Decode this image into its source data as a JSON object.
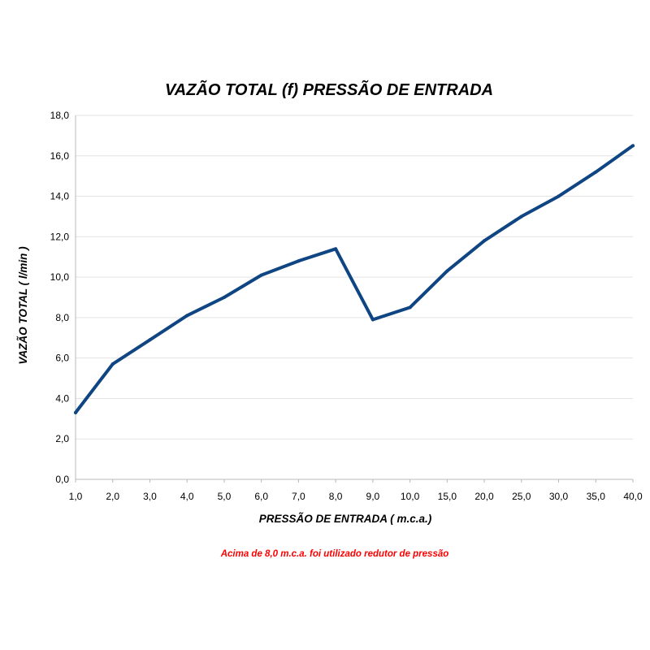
{
  "chart_data": {
    "type": "line",
    "title": "VAZÃO TOTAL (f) PRESSÃO DE ENTRADA",
    "xlabel": "PRESSÃO DE ENTRADA ( m.c.a.)",
    "ylabel": "VAZÃO TOTAL ( l/min )",
    "categories": [
      "1,0",
      "2,0",
      "3,0",
      "4,0",
      "5,0",
      "6,0",
      "7,0",
      "8,0",
      "9,0",
      "10,0",
      "15,0",
      "20,0",
      "25,0",
      "30,0",
      "35,0",
      "40,0"
    ],
    "series": [
      {
        "values": [
          3.3,
          5.7,
          6.9,
          8.1,
          9.0,
          10.1,
          10.8,
          11.4,
          7.9,
          8.5,
          10.3,
          11.8,
          13.0,
          14.0,
          15.2,
          16.5
        ],
        "color": "#0f4582"
      }
    ],
    "ylim": [
      0,
      18
    ],
    "yticks": [
      "0,0",
      "2,0",
      "4,0",
      "6,0",
      "8,0",
      "10,0",
      "12,0",
      "14,0",
      "16,0",
      "18,0"
    ],
    "grid": true,
    "legend": "none",
    "annotation": "Acima de 8,0 m.c.a. foi utilizado redutor de pressão",
    "annotation_color": "#ff0000"
  }
}
